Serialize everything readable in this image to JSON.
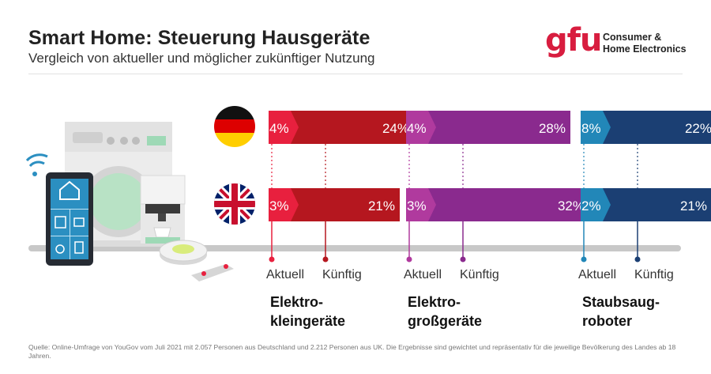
{
  "header": {
    "title": "Smart Home: Steuerung Hausgeräte",
    "subtitle": "Vergleich von aktueller und möglicher zukünftiger Nutzung"
  },
  "logo": {
    "mark": "gfu",
    "line1": "Consumer &",
    "line2": "Home Electronics",
    "color": "#d81d3f"
  },
  "countries": [
    {
      "flag": "germany-flag-icon"
    },
    {
      "flag": "uk-flag-icon"
    }
  ],
  "chart_data": {
    "type": "bar",
    "unit": "%",
    "legend": [
      "Aktuell",
      "Künftig"
    ],
    "groups": [
      {
        "title_line1": "Elektro-",
        "title_line2": "kleingeräte",
        "colors": {
          "current": "#e8203e",
          "future": "#b5171f"
        },
        "rows": [
          {
            "country": "DE",
            "current": 4,
            "future": 24,
            "current_label": "4%",
            "future_label": "24%"
          },
          {
            "country": "UK",
            "current": 3,
            "future": 21,
            "current_label": "3%",
            "future_label": "21%"
          }
        ]
      },
      {
        "title_line1": "Elektro-",
        "title_line2": "großgeräte",
        "colors": {
          "current": "#b03a9e",
          "future": "#8a2a8e"
        },
        "rows": [
          {
            "country": "DE",
            "current": 4,
            "future": 28,
            "current_label": "4%",
            "future_label": "28%"
          },
          {
            "country": "UK",
            "current": 3,
            "future": 32,
            "current_label": "3%",
            "future_label": "32%"
          }
        ]
      },
      {
        "title_line1": "Staubsaug-",
        "title_line2": "roboter",
        "colors": {
          "current": "#2287b8",
          "future": "#1b3f73"
        },
        "rows": [
          {
            "country": "DE",
            "current": 8,
            "future": 22,
            "current_label": "8%",
            "future_label": "22%"
          },
          {
            "country": "UK",
            "current": 2,
            "future": 21,
            "current_label": "2%",
            "future_label": "21%"
          }
        ]
      }
    ]
  },
  "source": "Quelle: Online-Umfrage von YouGov vom Juli 2021 mit 2.057 Personen aus Deutschland und 2.212 Personen aus UK. Die Ergebnisse sind gewichtet und repräsentativ für die jeweilige Bevölkerung des Landes ab 18 Jahren."
}
